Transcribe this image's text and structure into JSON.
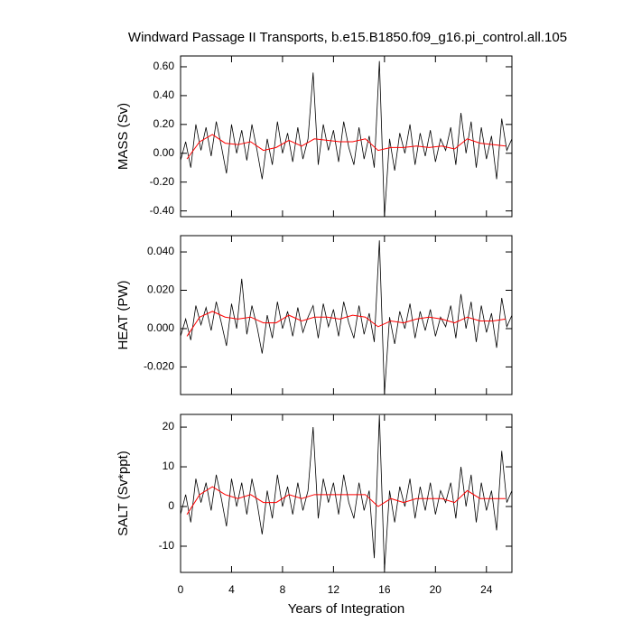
{
  "chart_data": [
    {
      "type": "line",
      "title": "Windward Passage II Transports, b.e15.B1850.f09_g16.pi_control.all.105",
      "ylabel": "MASS (Sv)",
      "xlim": [
        0,
        26
      ],
      "ylim": [
        -0.44,
        0.675
      ],
      "yticks": [
        {
          "value": -0.4,
          "label": "-0.40"
        },
        {
          "value": -0.2,
          "label": "-0.20"
        },
        {
          "value": 0,
          "label": "0.00"
        },
        {
          "value": 0.2,
          "label": "0.20"
        },
        {
          "value": 0.4,
          "label": "0.40"
        },
        {
          "value": 0.6,
          "label": "0.60"
        }
      ],
      "x": [
        0,
        0.4,
        0.8,
        1.2,
        1.6,
        2.0,
        2.4,
        2.8,
        3.2,
        3.6,
        4.0,
        4.4,
        4.8,
        5.2,
        5.6,
        6.0,
        6.4,
        6.8,
        7.2,
        7.6,
        8.0,
        8.4,
        8.8,
        9.2,
        9.6,
        10.0,
        10.4,
        10.8,
        11.2,
        11.6,
        12.0,
        12.4,
        12.8,
        13.2,
        13.6,
        14.0,
        14.4,
        14.8,
        15.2,
        15.6,
        16.0,
        16.4,
        16.8,
        17.2,
        17.6,
        18.0,
        18.4,
        18.8,
        19.2,
        19.6,
        20.0,
        20.4,
        20.8,
        21.2,
        21.6,
        22.0,
        22.4,
        22.8,
        23.2,
        23.6,
        24.0,
        24.4,
        24.8,
        25.2,
        25.6,
        26.0
      ],
      "series": [
        {
          "color": "#000000",
          "values": [
            -0.05,
            0.08,
            -0.1,
            0.2,
            0.02,
            0.18,
            -0.02,
            0.22,
            0.05,
            -0.14,
            0.2,
            0.0,
            0.16,
            -0.05,
            0.2,
            0.02,
            -0.18,
            0.1,
            -0.08,
            0.22,
            0.0,
            0.14,
            -0.06,
            0.18,
            -0.04,
            0.1,
            0.56,
            -0.08,
            0.2,
            0.02,
            0.16,
            -0.06,
            0.22,
            0.04,
            -0.08,
            0.18,
            -0.04,
            0.12,
            -0.1,
            0.64,
            -0.44,
            0.1,
            -0.12,
            0.14,
            0.0,
            0.2,
            -0.08,
            0.14,
            -0.02,
            0.16,
            -0.06,
            0.1,
            0.02,
            0.18,
            -0.08,
            0.28,
            0.0,
            0.22,
            -0.1,
            0.18,
            -0.04,
            0.12,
            -0.18,
            0.24,
            0.02,
            0.1
          ]
        },
        {
          "color": "#ff0000",
          "x": [
            0.5,
            1.5,
            2.5,
            3.5,
            4.5,
            5.5,
            6.5,
            7.5,
            8.5,
            9.5,
            10.5,
            11.5,
            12.5,
            13.5,
            14.5,
            15.5,
            16.5,
            17.5,
            18.5,
            19.5,
            20.5,
            21.5,
            22.5,
            23.5,
            24.5,
            25.5
          ],
          "values": [
            -0.04,
            0.08,
            0.13,
            0.07,
            0.06,
            0.08,
            0.02,
            0.04,
            0.09,
            0.05,
            0.1,
            0.09,
            0.08,
            0.08,
            0.1,
            0.02,
            0.04,
            0.04,
            0.05,
            0.04,
            0.05,
            0.03,
            0.1,
            0.07,
            0.06,
            0.05
          ]
        }
      ]
    },
    {
      "type": "line",
      "ylabel": "HEAT (PW)",
      "xlim": [
        0,
        26
      ],
      "ylim": [
        -0.0344,
        0.0485
      ],
      "yticks": [
        {
          "value": -0.02,
          "label": "-0.020"
        },
        {
          "value": 0,
          "label": "0.000"
        },
        {
          "value": 0.02,
          "label": "0.020"
        },
        {
          "value": 0.04,
          "label": "0.040"
        }
      ],
      "x": [
        0,
        0.4,
        0.8,
        1.2,
        1.6,
        2.0,
        2.4,
        2.8,
        3.2,
        3.6,
        4.0,
        4.4,
        4.8,
        5.2,
        5.6,
        6.0,
        6.4,
        6.8,
        7.2,
        7.6,
        8.0,
        8.4,
        8.8,
        9.2,
        9.6,
        10.0,
        10.4,
        10.8,
        11.2,
        11.6,
        12.0,
        12.4,
        12.8,
        13.2,
        13.6,
        14.0,
        14.4,
        14.8,
        15.2,
        15.6,
        16.0,
        16.4,
        16.8,
        17.2,
        17.6,
        18.0,
        18.4,
        18.8,
        19.2,
        19.6,
        20.0,
        20.4,
        20.8,
        21.2,
        21.6,
        22.0,
        22.4,
        22.8,
        23.2,
        23.6,
        24.0,
        24.4,
        24.8,
        25.2,
        25.6,
        26.0
      ],
      "series": [
        {
          "color": "#000000",
          "values": [
            -0.004,
            0.005,
            -0.006,
            0.012,
            0.002,
            0.011,
            -0.001,
            0.014,
            0.003,
            -0.009,
            0.013,
            0.0,
            0.026,
            -0.003,
            0.012,
            0.001,
            -0.013,
            0.007,
            -0.005,
            0.014,
            0.0,
            0.009,
            -0.004,
            0.011,
            -0.002,
            0.006,
            0.012,
            -0.005,
            0.013,
            0.001,
            0.01,
            -0.004,
            0.014,
            0.003,
            -0.005,
            0.012,
            -0.003,
            0.008,
            -0.007,
            0.046,
            -0.034,
            0.006,
            -0.008,
            0.009,
            0.0,
            0.013,
            -0.005,
            0.009,
            -0.001,
            0.01,
            -0.004,
            0.006,
            0.001,
            0.012,
            -0.005,
            0.018,
            0.0,
            0.014,
            -0.007,
            0.012,
            -0.002,
            0.008,
            -0.01,
            0.016,
            0.001,
            0.007
          ]
        },
        {
          "color": "#ff0000",
          "x": [
            0.5,
            1.5,
            2.5,
            3.5,
            4.5,
            5.5,
            6.5,
            7.5,
            8.5,
            9.5,
            10.5,
            11.5,
            12.5,
            13.5,
            14.5,
            15.5,
            16.5,
            17.5,
            18.5,
            19.5,
            20.5,
            21.5,
            22.5,
            23.5,
            24.5,
            25.5
          ],
          "values": [
            -0.004,
            0.006,
            0.009,
            0.006,
            0.005,
            0.006,
            0.003,
            0.003,
            0.007,
            0.004,
            0.006,
            0.006,
            0.005,
            0.007,
            0.006,
            0.001,
            0.004,
            0.003,
            0.005,
            0.006,
            0.005,
            0.003,
            0.006,
            0.004,
            0.004,
            0.005
          ]
        }
      ]
    },
    {
      "type": "line",
      "ylabel": "SALT (Sv*ppt)",
      "xlabel": "Years of Integration",
      "xlim": [
        0,
        26
      ],
      "ylim": [
        -16.6,
        23.2
      ],
      "yticks": [
        -10,
        0,
        10,
        20
      ],
      "xticks": [
        0,
        4,
        8,
        12,
        16,
        20,
        24
      ],
      "x": [
        0,
        0.4,
        0.8,
        1.2,
        1.6,
        2.0,
        2.4,
        2.8,
        3.2,
        3.6,
        4.0,
        4.4,
        4.8,
        5.2,
        5.6,
        6.0,
        6.4,
        6.8,
        7.2,
        7.6,
        8.0,
        8.4,
        8.8,
        9.2,
        9.6,
        10.0,
        10.4,
        10.8,
        11.2,
        11.6,
        12.0,
        12.4,
        12.8,
        13.2,
        13.6,
        14.0,
        14.4,
        14.8,
        15.2,
        15.6,
        16.0,
        16.4,
        16.8,
        17.2,
        17.6,
        18.0,
        18.4,
        18.8,
        19.2,
        19.6,
        20.0,
        20.4,
        20.8,
        21.2,
        21.6,
        22.0,
        22.4,
        22.8,
        23.2,
        23.6,
        24.0,
        24.4,
        24.8,
        25.2,
        25.6,
        26.0
      ],
      "series": [
        {
          "color": "#000000",
          "values": [
            -2,
            3,
            -4,
            7,
            1,
            6,
            -1,
            8,
            2,
            -5,
            7,
            0,
            6,
            -2,
            7,
            1,
            -7,
            4,
            -3,
            8,
            0,
            5,
            -2,
            6,
            -1,
            4,
            20,
            -3,
            7,
            1,
            6,
            -2,
            8,
            1,
            -3,
            6,
            -1,
            4,
            -13,
            23,
            -16,
            4,
            -4,
            5,
            0,
            7,
            -3,
            5,
            -1,
            6,
            -2,
            4,
            1,
            6,
            -3,
            10,
            0,
            8,
            -4,
            6,
            -1,
            4,
            -6,
            14,
            1,
            4
          ]
        },
        {
          "color": "#ff0000",
          "x": [
            0.5,
            1.5,
            2.5,
            3.5,
            4.5,
            5.5,
            6.5,
            7.5,
            8.5,
            9.5,
            10.5,
            11.5,
            12.5,
            13.5,
            14.5,
            15.5,
            16.5,
            17.5,
            18.5,
            19.5,
            20.5,
            21.5,
            22.5,
            23.5,
            24.5,
            25.5
          ],
          "values": [
            -2,
            3,
            5,
            3,
            2,
            3,
            1,
            1,
            3,
            2,
            3,
            3,
            3,
            3,
            3,
            0,
            2,
            1,
            2,
            2,
            2,
            1,
            4,
            2,
            2,
            2
          ]
        }
      ]
    }
  ]
}
